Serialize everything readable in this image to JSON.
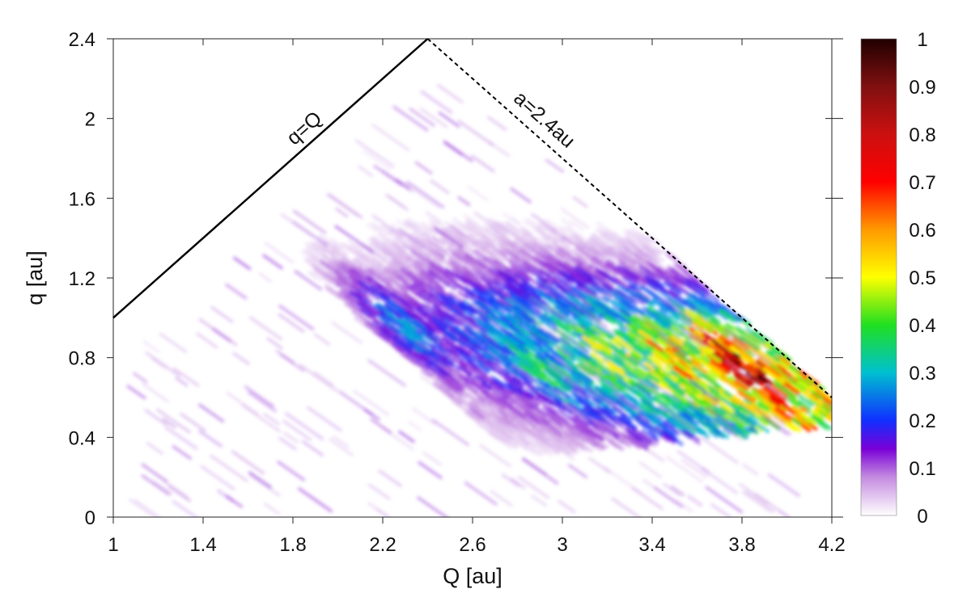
{
  "chart_data": {
    "type": "heatmap",
    "title": "",
    "xlabel": "Q [au]",
    "ylabel": "q [au]",
    "xlim": [
      1,
      4.2
    ],
    "ylim": [
      0,
      2.4
    ],
    "x_ticks": [
      1,
      1.4,
      1.8,
      2.2,
      2.6,
      3,
      3.4,
      3.8,
      4.2
    ],
    "y_ticks": [
      0,
      0.4,
      0.8,
      1.2,
      1.6,
      2,
      2.4
    ],
    "grid": false,
    "colorbar": {
      "range": [
        0,
        1
      ],
      "ticks": [
        0,
        0.1,
        0.2,
        0.3,
        0.4,
        0.5,
        0.6,
        0.7,
        0.8,
        0.9,
        1
      ],
      "stops": [
        {
          "v": 0.0,
          "color": "#ffffff"
        },
        {
          "v": 0.08,
          "color": "#c48ce0"
        },
        {
          "v": 0.14,
          "color": "#7a00d8"
        },
        {
          "v": 0.2,
          "color": "#1030ff"
        },
        {
          "v": 0.3,
          "color": "#00c0d0"
        },
        {
          "v": 0.4,
          "color": "#20e020"
        },
        {
          "v": 0.5,
          "color": "#ffff00"
        },
        {
          "v": 0.6,
          "color": "#ff9900"
        },
        {
          "v": 0.7,
          "color": "#ff0000"
        },
        {
          "v": 0.8,
          "color": "#cc1010"
        },
        {
          "v": 0.9,
          "color": "#801010"
        },
        {
          "v": 1.0,
          "color": "#200000"
        }
      ]
    },
    "lines": [
      {
        "label": "q=Q",
        "style": "solid",
        "from": [
          1,
          1
        ],
        "to": [
          2.4,
          2.4
        ]
      },
      {
        "label": "a=2.4au",
        "style": "dashed",
        "from": [
          2.4,
          2.4
        ],
        "to": [
          4.2,
          0.6
        ]
      }
    ],
    "density_field": {
      "description_kind": "approximate peak values",
      "hotspots": [
        {
          "Q": 3.8,
          "q": 0.75,
          "value": 0.9
        },
        {
          "Q": 3.5,
          "q": 0.8,
          "value": 0.6
        },
        {
          "Q": 4.0,
          "q": 0.55,
          "value": 0.6
        },
        {
          "Q": 3.2,
          "q": 0.8,
          "value": 0.45
        },
        {
          "Q": 2.9,
          "q": 0.75,
          "value": 0.35
        },
        {
          "Q": 2.3,
          "q": 0.95,
          "value": 0.25
        },
        {
          "Q": 2.1,
          "q": 0.7,
          "value": 0.2
        },
        {
          "Q": 1.6,
          "q": 0.9,
          "value": 0.2
        }
      ]
    }
  }
}
